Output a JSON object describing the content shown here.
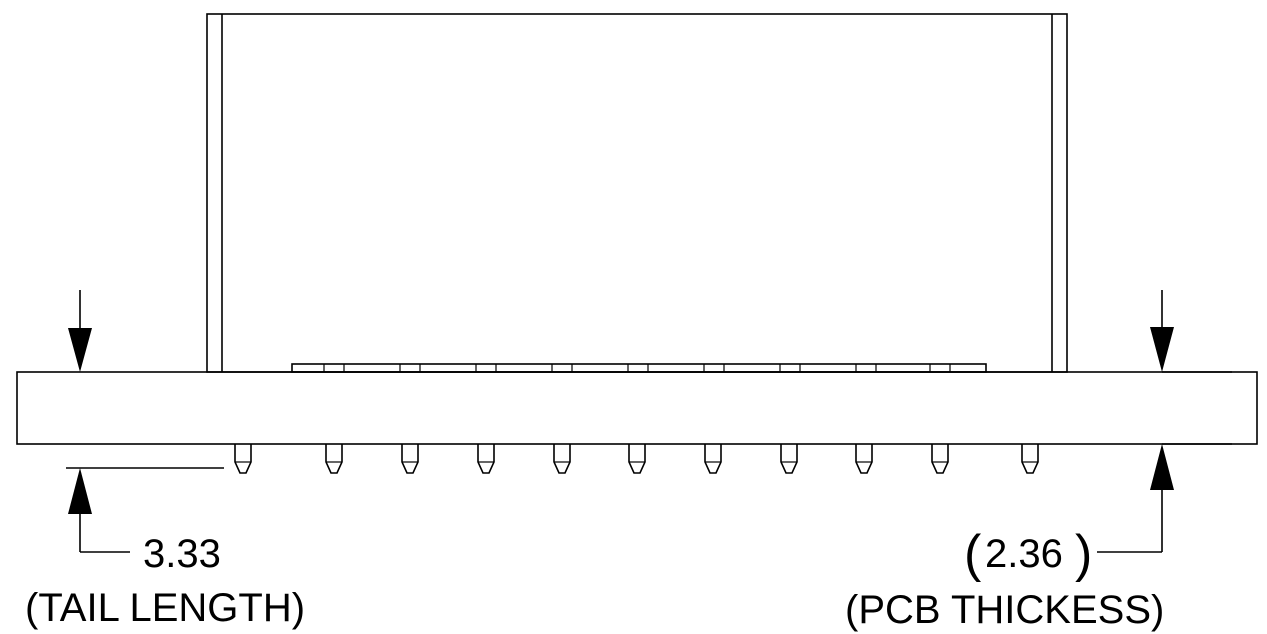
{
  "tail_dimension": {
    "value": "3.33",
    "label": "(TAIL LENGTH)"
  },
  "pcb_dimension": {
    "value": "2.36",
    "paren_open": "(",
    "paren_close": ")",
    "label": "(PCB THICKESS)"
  },
  "pin_count": 11,
  "colors": {
    "line": "#000000",
    "background": "#ffffff"
  }
}
